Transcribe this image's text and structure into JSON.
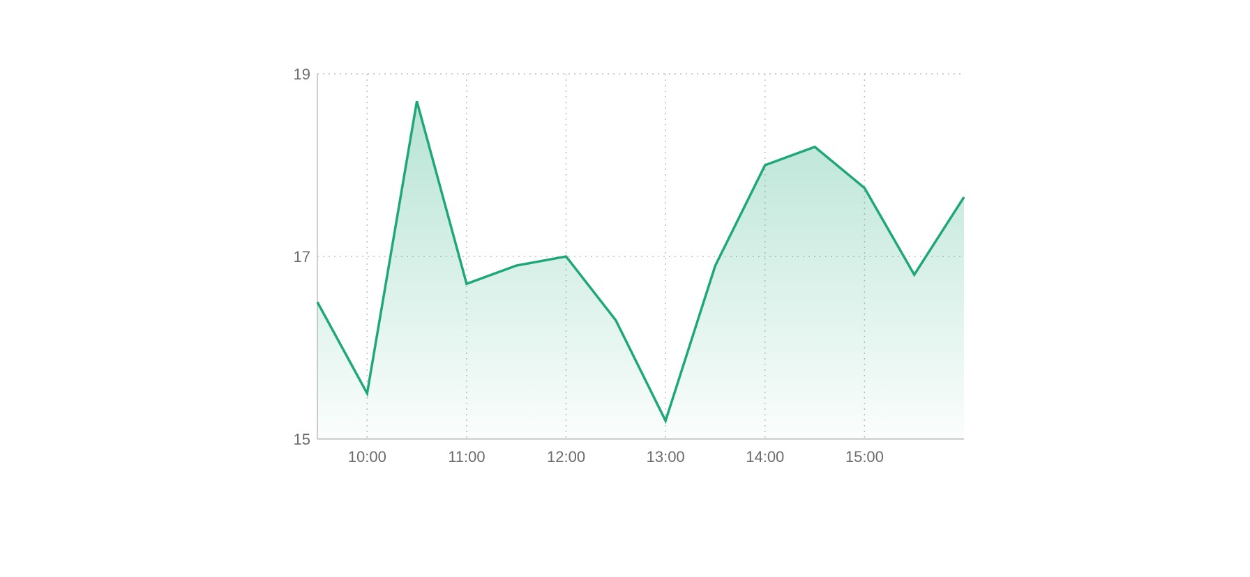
{
  "colors": {
    "line": "#1ea87a",
    "area_top": "#1ea87a",
    "grid": "#bdbdbd",
    "tick_text": "#6b6b6b"
  },
  "chart_data": {
    "type": "area",
    "title": "",
    "xlabel": "",
    "ylabel": "",
    "x": [
      "09:30",
      "10:00",
      "10:30",
      "11:00",
      "11:30",
      "12:00",
      "12:30",
      "13:00",
      "13:30",
      "14:00",
      "14:30",
      "15:00",
      "15:30",
      "16:00"
    ],
    "x_ticks": [
      "10:00",
      "11:00",
      "12:00",
      "13:00",
      "14:00",
      "15:00"
    ],
    "xlim": [
      "09:30",
      "16:00"
    ],
    "series": [
      {
        "values": [
          16.5,
          15.5,
          18.7,
          16.7,
          16.9,
          17.0,
          16.3,
          15.2,
          16.9,
          18.0,
          18.2,
          17.75,
          16.8,
          17.65
        ]
      }
    ],
    "y_ticks": [
      15,
      17,
      19
    ],
    "ylim": [
      15,
      19
    ],
    "grid": true,
    "legend": "none"
  }
}
